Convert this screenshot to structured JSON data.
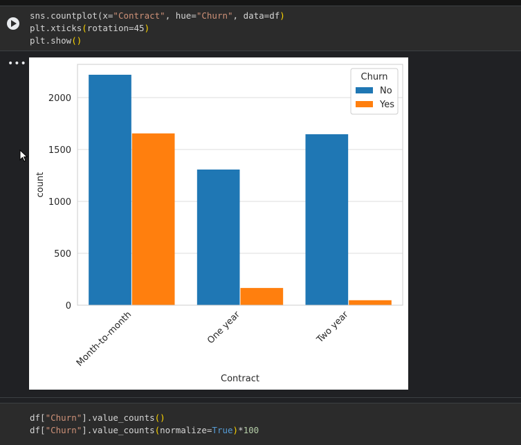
{
  "cell1": {
    "code_lines": [
      [
        {
          "t": "sns.countplot(x=",
          "c": ""
        },
        {
          "t": "\"Contract\"",
          "c": "s"
        },
        {
          "t": ", hue=",
          "c": ""
        },
        {
          "t": "\"Churn\"",
          "c": "s"
        },
        {
          "t": ", data=df",
          "c": ""
        },
        {
          "t": ")",
          "c": "p"
        }
      ],
      [
        {
          "t": "plt.xticks",
          "c": ""
        },
        {
          "t": "(",
          "c": "p"
        },
        {
          "t": "rotation=45",
          "c": ""
        },
        {
          "t": ")",
          "c": "p"
        }
      ],
      [
        {
          "t": "plt.show",
          "c": ""
        },
        {
          "t": "()",
          "c": "p"
        }
      ]
    ],
    "output_menu": "•••"
  },
  "cell2": {
    "code_lines": [
      [
        {
          "t": "df[",
          "c": ""
        },
        {
          "t": "\"Churn\"",
          "c": "s"
        },
        {
          "t": "].value_counts",
          "c": ""
        },
        {
          "t": "()",
          "c": "p"
        }
      ],
      [
        {
          "t": "df[",
          "c": ""
        },
        {
          "t": "\"Churn\"",
          "c": "s"
        },
        {
          "t": "].value_counts",
          "c": ""
        },
        {
          "t": "(",
          "c": "p"
        },
        {
          "t": "normalize=",
          "c": ""
        },
        {
          "t": "True",
          "c": "kw"
        },
        {
          "t": ")",
          "c": "p"
        },
        {
          "t": "*",
          "c": ""
        },
        {
          "t": "100",
          "c": "n"
        }
      ]
    ]
  },
  "chart_data": {
    "type": "bar",
    "categories": [
      "Month-to-month",
      "One year",
      "Two year"
    ],
    "series": [
      {
        "name": "No",
        "values": [
          2220,
          1307,
          1647
        ],
        "color": "#1f77b4"
      },
      {
        "name": "Yes",
        "values": [
          1655,
          166,
          48
        ],
        "color": "#ff7f0e"
      }
    ],
    "xlabel": "Contract",
    "ylabel": "count",
    "ylim": [
      0,
      2320
    ],
    "yticks": [
      0,
      500,
      1000,
      1500,
      2000
    ],
    "legend_title": "Churn",
    "legend_position": "top-right",
    "xtick_rotation": 45,
    "grid": "y"
  }
}
